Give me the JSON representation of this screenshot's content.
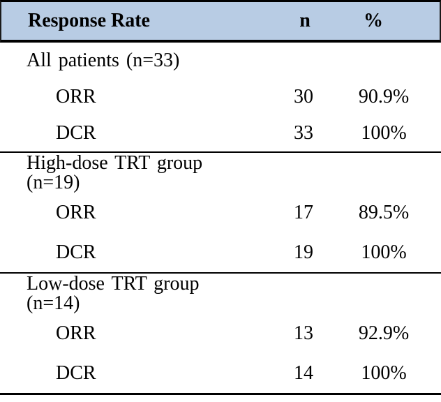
{
  "table": {
    "header": {
      "col1": "Response Rate",
      "col2": "n",
      "col3": "%"
    },
    "sections": [
      {
        "title": "All patients (n=33)",
        "rows": [
          {
            "label": "ORR",
            "n": "30",
            "pct": "90.9%"
          },
          {
            "label": "DCR",
            "n": "33",
            "pct": "100%"
          }
        ]
      },
      {
        "title": "High-dose TRT group (n=19)",
        "rows": [
          {
            "label": "ORR",
            "n": "17",
            "pct": "89.5%"
          },
          {
            "label": "DCR",
            "n": "19",
            "pct": "100%"
          }
        ]
      },
      {
        "title": "Low-dose TRT group (n=14)",
        "rows": [
          {
            "label": "ORR",
            "n": "13",
            "pct": "92.9%"
          },
          {
            "label": "DCR",
            "n": "14",
            "pct": "100%"
          }
        ]
      }
    ],
    "colors": {
      "header_bg": "#b8cce4",
      "border": "#000000",
      "text": "#000000"
    }
  }
}
